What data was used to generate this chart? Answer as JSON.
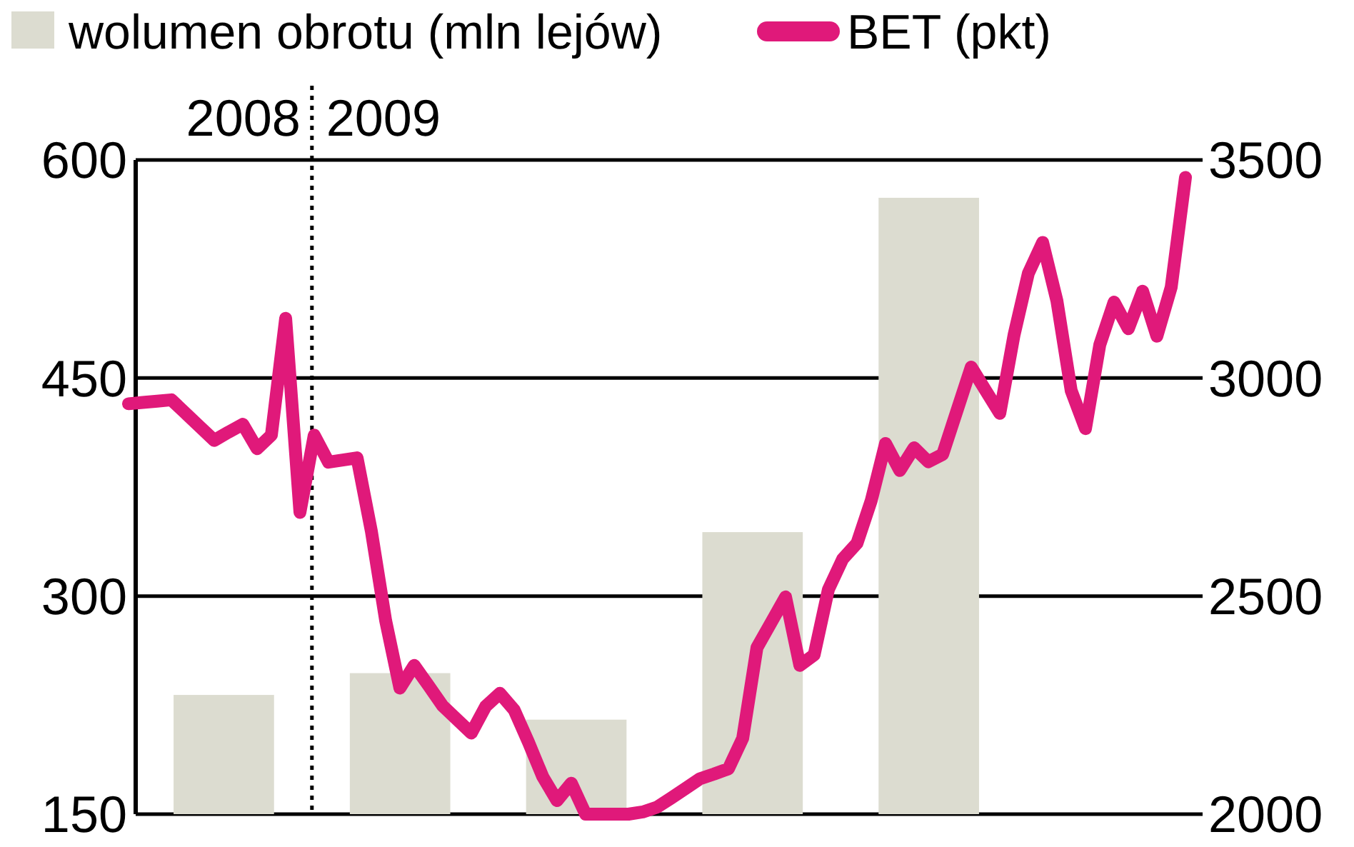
{
  "chart_data": [
    {
      "type": "bar",
      "categories": [
        null,
        null,
        null,
        null,
        null
      ],
      "ylim": [
        150,
        600
      ],
      "yticks": [
        150,
        300,
        450,
        600
      ],
      "grid": "y",
      "legend": "top",
      "tick_labels": "y",
      "annotations": [
        "2008",
        "2009"
      ],
      "series": [
        {
          "name": "wolumen obrotu (mln lejów)",
          "color": "#dcdcd0",
          "values": [
            232,
            247,
            215,
            344,
            574
          ]
        }
      ]
    },
    {
      "type": "line",
      "categories": [
        null,
        null,
        null,
        null,
        null,
        null,
        null,
        null,
        null,
        null,
        null,
        null,
        null,
        null,
        null,
        null,
        null,
        null,
        null,
        null,
        null,
        null,
        null,
        null,
        null,
        null,
        null,
        null,
        null,
        null,
        null,
        null,
        null,
        null,
        null,
        null,
        null,
        null,
        null,
        null,
        null,
        null,
        null,
        null,
        null,
        null,
        null,
        null,
        null,
        null,
        null,
        null,
        null,
        null,
        null,
        null,
        null,
        null,
        null,
        null,
        null,
        null,
        null,
        null,
        null,
        null,
        null,
        null,
        null,
        null,
        null,
        null,
        null,
        null,
        null
      ],
      "ylim": [
        2000,
        3500
      ],
      "yticks": [
        2000,
        2500,
        3000,
        3500
      ],
      "legend": "top",
      "tick_labels": "y",
      "line_style": "solid",
      "series": [
        {
          "name": "BET (pkt)",
          "color": "#e0197a",
          "values": [
            2941,
            2944,
            2947,
            2950,
            2919,
            2888,
            2857,
            2876,
            2894,
            2838,
            2869,
            3137,
            2692,
            2869,
            2807,
            2812,
            2817,
            2649,
            2444,
            2289,
            2341,
            2295,
            2248,
            2217,
            2186,
            2247,
            2277,
            2239,
            2165,
            2086,
            2031,
            2071,
            2000,
            2000,
            2000,
            2000,
            2005,
            2016,
            2037,
            2059,
            2081,
            2092,
            2104,
            2174,
            2382,
            2440,
            2498,
            2341,
            2365,
            2515,
            2585,
            2621,
            2719,
            2850,
            2788,
            2840,
            2808,
            2825,
            2925,
            3025,
            2972,
            2919,
            3099,
            3240,
            3311,
            3177,
            2971,
            2884,
            3076,
            3174,
            3113,
            3199,
            3096,
            3208,
            3460
          ]
        }
      ]
    }
  ]
}
